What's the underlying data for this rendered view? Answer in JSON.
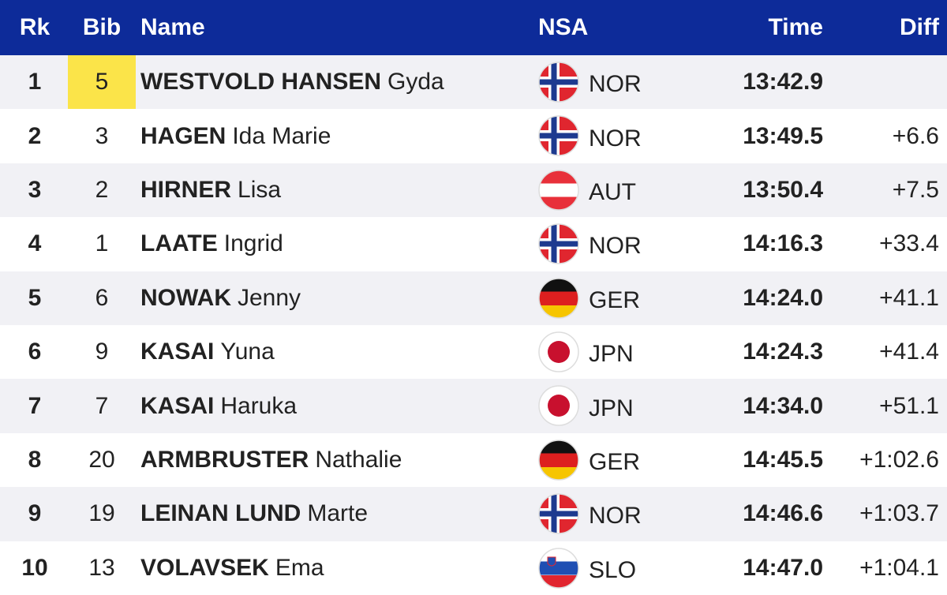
{
  "header": {
    "rk": "Rk",
    "bib": "Bib",
    "name": "Name",
    "nsa": "NSA",
    "time": "Time",
    "diff": "Diff"
  },
  "rows": [
    {
      "rk": 1,
      "bib": 5,
      "surname": "WESTVOLD HANSEN",
      "given": "Gyda",
      "nsa": "NOR",
      "time": "13:42.9",
      "diff": null
    },
    {
      "rk": 2,
      "bib": 3,
      "surname": "HAGEN",
      "given": "Ida Marie",
      "nsa": "NOR",
      "time": "13:49.5",
      "diff": "+6.6"
    },
    {
      "rk": 3,
      "bib": 2,
      "surname": "HIRNER",
      "given": "Lisa",
      "nsa": "AUT",
      "time": "13:50.4",
      "diff": "+7.5"
    },
    {
      "rk": 4,
      "bib": 1,
      "surname": "LAATE",
      "given": "Ingrid",
      "nsa": "NOR",
      "time": "14:16.3",
      "diff": "+33.4"
    },
    {
      "rk": 5,
      "bib": 6,
      "surname": "NOWAK",
      "given": "Jenny",
      "nsa": "GER",
      "time": "14:24.0",
      "diff": "+41.1"
    },
    {
      "rk": 6,
      "bib": 9,
      "surname": "KASAI",
      "given": "Yuna",
      "nsa": "JPN",
      "time": "14:24.3",
      "diff": "+41.4"
    },
    {
      "rk": 7,
      "bib": 7,
      "surname": "KASAI",
      "given": "Haruka",
      "nsa": "JPN",
      "time": "14:34.0",
      "diff": "+51.1"
    },
    {
      "rk": 8,
      "bib": 20,
      "surname": "ARMBRUSTER",
      "given": "Nathalie",
      "nsa": "GER",
      "time": "14:45.5",
      "diff": "+1:02.6"
    },
    {
      "rk": 9,
      "bib": 19,
      "surname": "LEINAN LUND",
      "given": "Marte",
      "nsa": "NOR",
      "time": "14:46.6",
      "diff": "+1:03.7"
    },
    {
      "rk": 10,
      "bib": 13,
      "surname": "VOLAVSEK",
      "given": "Ema",
      "nsa": "SLO",
      "time": "14:47.0",
      "diff": "+1:04.1"
    }
  ]
}
